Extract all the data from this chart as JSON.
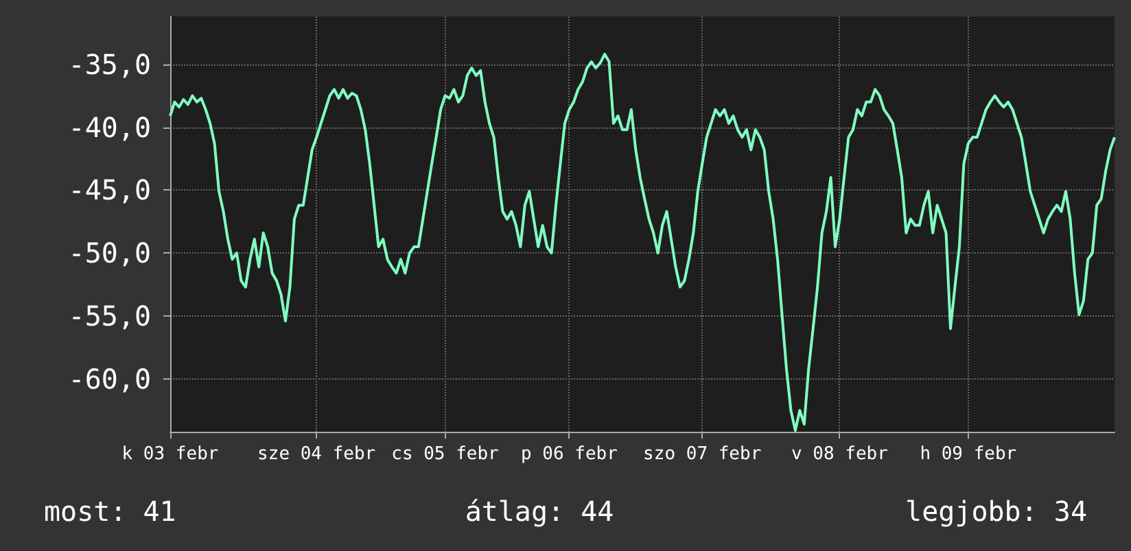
{
  "chart_data": {
    "type": "line",
    "categories": [
      "k 03 febr",
      null,
      null,
      null,
      null,
      null,
      null,
      null,
      null,
      null,
      null,
      null,
      null,
      null,
      null,
      null,
      null,
      null,
      null,
      null,
      null,
      null,
      null,
      null,
      null,
      null,
      null,
      null,
      null,
      null,
      null,
      null,
      null,
      "sze 04 febr",
      null,
      null,
      null,
      null,
      null,
      null,
      null,
      null,
      null,
      null,
      null,
      null,
      null,
      null,
      null,
      null,
      null,
      null,
      null,
      null,
      null,
      null,
      null,
      null,
      null,
      null,
      null,
      null,
      "cs 05 febr",
      null,
      null,
      null,
      null,
      null,
      null,
      null,
      null,
      null,
      null,
      null,
      null,
      null,
      null,
      null,
      null,
      null,
      null,
      null,
      null,
      null,
      null,
      null,
      null,
      null,
      null,
      null,
      "p 06 febr",
      null,
      null,
      null,
      null,
      null,
      null,
      null,
      null,
      null,
      null,
      null,
      null,
      null,
      null,
      null,
      null,
      null,
      null,
      null,
      null,
      null,
      null,
      null,
      null,
      null,
      null,
      null,
      null,
      null,
      "szo 07 febr",
      null,
      null,
      null,
      null,
      null,
      null,
      null,
      null,
      null,
      null,
      null,
      null,
      null,
      null,
      null,
      null,
      null,
      null,
      null,
      null,
      null,
      null,
      null,
      null,
      null,
      null,
      null,
      null,
      null,
      null,
      "v 08 febr",
      null,
      null,
      null,
      null,
      null,
      null,
      null,
      null,
      null,
      null,
      null,
      null,
      null,
      null,
      null,
      null,
      null,
      null,
      null,
      null,
      null,
      null,
      null,
      null,
      null,
      null,
      null,
      null,
      "h 09 febr",
      null,
      null,
      null,
      null,
      null,
      null,
      null,
      null,
      null,
      null,
      null,
      null,
      null,
      null,
      null,
      null,
      null,
      null,
      null,
      null,
      null,
      null,
      null,
      null,
      null,
      null,
      null,
      null,
      null,
      null,
      null,
      null,
      null
    ],
    "series": [
      {
        "color": "#80ffc0",
        "values": [
          -39.1,
          -38.0,
          -38.4,
          -37.8,
          -38.2,
          -37.5,
          -38.0,
          -37.7,
          -38.6,
          -39.7,
          -41.3,
          -45.1,
          -46.7,
          -48.9,
          -50.5,
          -50.0,
          -52.2,
          -52.7,
          -50.5,
          -48.9,
          -51.1,
          -48.4,
          -49.5,
          -51.6,
          -52.2,
          -53.3,
          -55.4,
          -52.7,
          -47.3,
          -46.2,
          -46.2,
          -44.0,
          -41.8,
          -40.8,
          -39.7,
          -38.6,
          -37.5,
          -37.0,
          -37.7,
          -37.0,
          -37.7,
          -37.3,
          -37.5,
          -38.6,
          -40.2,
          -42.9,
          -46.2,
          -49.5,
          -48.9,
          -50.5,
          -51.1,
          -51.6,
          -50.5,
          -51.6,
          -50.0,
          -49.5,
          -49.5,
          -47.3,
          -45.1,
          -42.9,
          -40.8,
          -38.6,
          -37.5,
          -37.7,
          -37.0,
          -38.0,
          -37.5,
          -35.9,
          -35.3,
          -35.9,
          -35.5,
          -38.0,
          -39.7,
          -40.8,
          -44.0,
          -46.7,
          -47.3,
          -46.7,
          -47.8,
          -49.5,
          -46.2,
          -45.1,
          -47.3,
          -49.5,
          -47.8,
          -49.5,
          -50.0,
          -46.2,
          -42.9,
          -39.7,
          -38.6,
          -38.0,
          -37.0,
          -36.4,
          -35.3,
          -34.8,
          -35.3,
          -34.9,
          -34.2,
          -34.8,
          -39.7,
          -39.1,
          -40.2,
          -40.2,
          -38.6,
          -41.8,
          -44.0,
          -45.7,
          -47.3,
          -48.4,
          -50.0,
          -47.8,
          -46.7,
          -48.9,
          -51.1,
          -52.7,
          -52.2,
          -50.5,
          -48.4,
          -45.1,
          -42.9,
          -40.8,
          -39.7,
          -38.6,
          -39.1,
          -38.6,
          -39.7,
          -39.1,
          -40.2,
          -40.8,
          -40.2,
          -41.8,
          -40.2,
          -40.8,
          -41.8,
          -45.1,
          -47.3,
          -50.5,
          -54.9,
          -59.2,
          -62.5,
          -64.1,
          -62.5,
          -63.6,
          -59.2,
          -56.0,
          -52.7,
          -48.4,
          -46.7,
          -44.0,
          -49.5,
          -47.3,
          -44.0,
          -40.8,
          -40.2,
          -38.6,
          -39.1,
          -38.0,
          -38.0,
          -37.0,
          -37.5,
          -38.6,
          -39.1,
          -39.7,
          -41.8,
          -44.0,
          -48.4,
          -47.3,
          -47.8,
          -47.8,
          -46.2,
          -45.1,
          -48.4,
          -46.2,
          -47.3,
          -48.4,
          -56.0,
          -52.7,
          -49.5,
          -42.9,
          -41.3,
          -40.8,
          -40.8,
          -39.7,
          -38.6,
          -38.0,
          -37.5,
          -38.0,
          -38.4,
          -38.0,
          -38.6,
          -39.7,
          -40.8,
          -42.9,
          -45.1,
          -46.2,
          -47.3,
          -48.4,
          -47.3,
          -46.7,
          -46.2,
          -46.7,
          -45.1,
          -47.3,
          -51.6,
          -54.9,
          -53.8,
          -50.5,
          -50.0,
          -46.2,
          -45.7,
          -43.5,
          -41.8,
          -40.8
        ]
      }
    ],
    "ylim": [
      -64.2,
      -31.2
    ],
    "yticks": [
      {
        "value": -60,
        "label": "-60,0"
      },
      {
        "value": -55,
        "label": "-55,0"
      },
      {
        "value": -50,
        "label": "-50,0"
      },
      {
        "value": -45,
        "label": "-45,0"
      },
      {
        "value": -40,
        "label": "-40,0"
      },
      {
        "value": -35,
        "label": "-35,0"
      }
    ],
    "grid": true,
    "annotations": [
      "most: 41",
      "átlag: 44",
      "legjobb: 34"
    ]
  }
}
